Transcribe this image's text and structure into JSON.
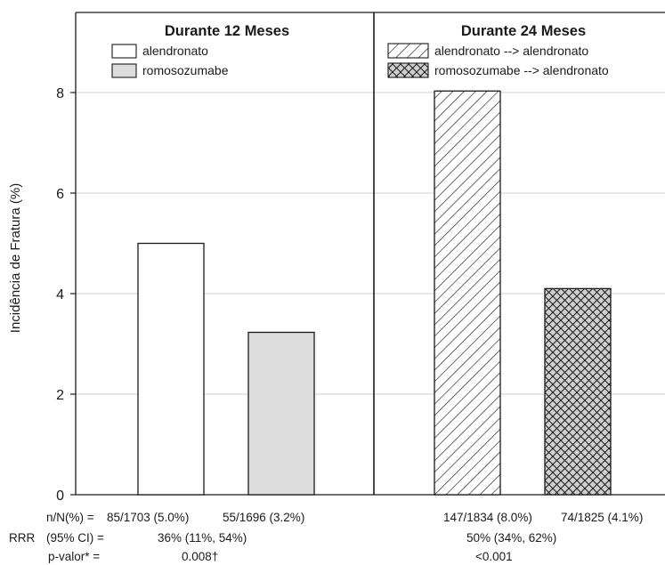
{
  "chart_data": {
    "type": "bar",
    "ylabel": "Incidência de Fratura (%)",
    "ylim": [
      0,
      9.4
    ],
    "yticks": [
      0,
      2,
      4,
      6,
      8
    ],
    "grid": true,
    "panels": [
      {
        "title": "Durante 12 Meses",
        "legend": [
          "alendronato",
          "romosozumabe"
        ],
        "series": [
          {
            "name": "alendronato",
            "value": 5.0,
            "fill": "#ffffff",
            "pattern": "none"
          },
          {
            "name": "romosozumabe",
            "value": 3.23,
            "fill": "#dcdcdc",
            "pattern": "none"
          }
        ]
      },
      {
        "title": "Durante 24 Meses",
        "legend": [
          "alendronato --> alendronato",
          "romosozumabe --> alendronato"
        ],
        "series": [
          {
            "name": "alendronato --> alendronato",
            "value": 8.03,
            "fill": "#ffffff",
            "pattern": "diagonal-hatch"
          },
          {
            "name": "romosozumabe --> alendronato",
            "value": 4.1,
            "fill": "#cfcfcf",
            "pattern": "crosshatch"
          }
        ]
      }
    ]
  },
  "footer": {
    "row1_label": "n/N(%) =",
    "row1_v1": "85/1703 (5.0%)",
    "row1_v2": "55/1696 (3.2%)",
    "row1_v3": "147/1834 (8.0%)",
    "row1_v4": "74/1825 (4.1%)",
    "row2_label_a": "RRR",
    "row2_label_b": "(95% CI) =",
    "row2_v1": "36% (11%, 54%)",
    "row2_v2": "50% (34%, 62%)",
    "row3_label": "p-valor* =",
    "row3_v1": "0.008†",
    "row3_v2": "<0.001"
  },
  "colors": {
    "axis": "#1a1a1a",
    "grid": "#cfcfcf",
    "bar_gray": "#dcdcdc",
    "crosshatch_bg": "#cfcfcf"
  }
}
